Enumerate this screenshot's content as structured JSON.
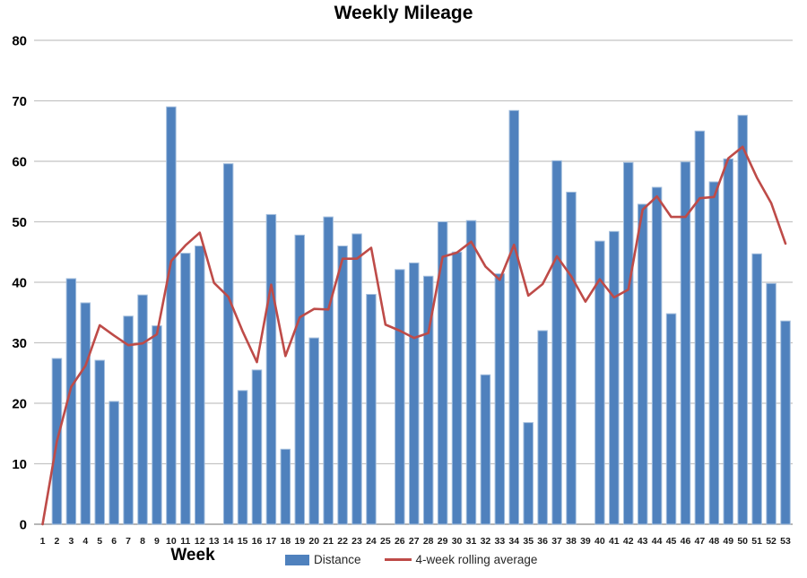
{
  "title": "Weekly Mileage",
  "x_axis_label": "Week",
  "legend": {
    "distance_label": "Distance",
    "rolling_label": "4-week rolling average"
  },
  "colors": {
    "bar_fill": "#4f81bd",
    "bar_stroke": "#a3bedd",
    "line": "#be4b48",
    "gridline": "#c4c4c4",
    "axis_line": "#9d9d9d",
    "ytick_text": "#000000",
    "xtick_text": "#1a1a1a"
  },
  "chart_data": {
    "type": "bar",
    "title": "Weekly Mileage",
    "xlabel": "Week",
    "ylabel": "",
    "ylim": [
      0,
      80
    ],
    "yticks": [
      0,
      10,
      20,
      30,
      40,
      50,
      60,
      70,
      80
    ],
    "grid": true,
    "legend_position": "bottom",
    "categories": [
      1,
      2,
      3,
      4,
      5,
      6,
      7,
      8,
      9,
      10,
      11,
      12,
      13,
      14,
      15,
      16,
      17,
      18,
      19,
      20,
      21,
      22,
      23,
      24,
      25,
      26,
      27,
      28,
      29,
      30,
      31,
      32,
      33,
      34,
      35,
      36,
      37,
      38,
      39,
      40,
      41,
      42,
      43,
      44,
      45,
      46,
      47,
      48,
      49,
      50,
      51,
      52,
      53
    ],
    "series": [
      {
        "name": "Distance",
        "type": "bar",
        "values": [
          0,
          27.4,
          40.6,
          36.6,
          27.1,
          20.3,
          34.4,
          37.9,
          32.8,
          69.0,
          44.8,
          46.0,
          0,
          59.6,
          22.1,
          25.5,
          51.2,
          12.4,
          47.8,
          30.8,
          50.8,
          46.0,
          48.0,
          38.0,
          0,
          42.1,
          43.2,
          41.0,
          50.0,
          45.0,
          50.2,
          24.7,
          41.4,
          68.4,
          16.8,
          32.0,
          60.1,
          54.9,
          0,
          46.8,
          48.4,
          59.8,
          52.9,
          55.7,
          34.8,
          59.9,
          65.0,
          56.6,
          60.4,
          67.6,
          44.7,
          39.8,
          33.6
        ]
      },
      {
        "name": "4-week rolling average",
        "type": "line",
        "values": [
          0,
          13.7,
          22.7,
          26.2,
          32.9,
          31.2,
          29.6,
          29.9,
          31.4,
          43.5,
          46.1,
          48.2,
          39.9,
          37.6,
          31.9,
          26.8,
          39.6,
          27.8,
          34.2,
          35.6,
          35.5,
          43.9,
          43.9,
          45.7,
          33.0,
          32.0,
          30.8,
          31.6,
          44.2,
          44.9,
          46.7,
          42.6,
          40.4,
          46.2,
          37.8,
          39.7,
          44.3,
          41.0,
          36.8,
          40.5,
          37.5,
          38.8,
          52.0,
          54.2,
          50.8,
          50.8,
          53.9,
          54.1,
          60.5,
          62.4,
          57.3,
          53.1,
          46.4
        ]
      }
    ]
  }
}
